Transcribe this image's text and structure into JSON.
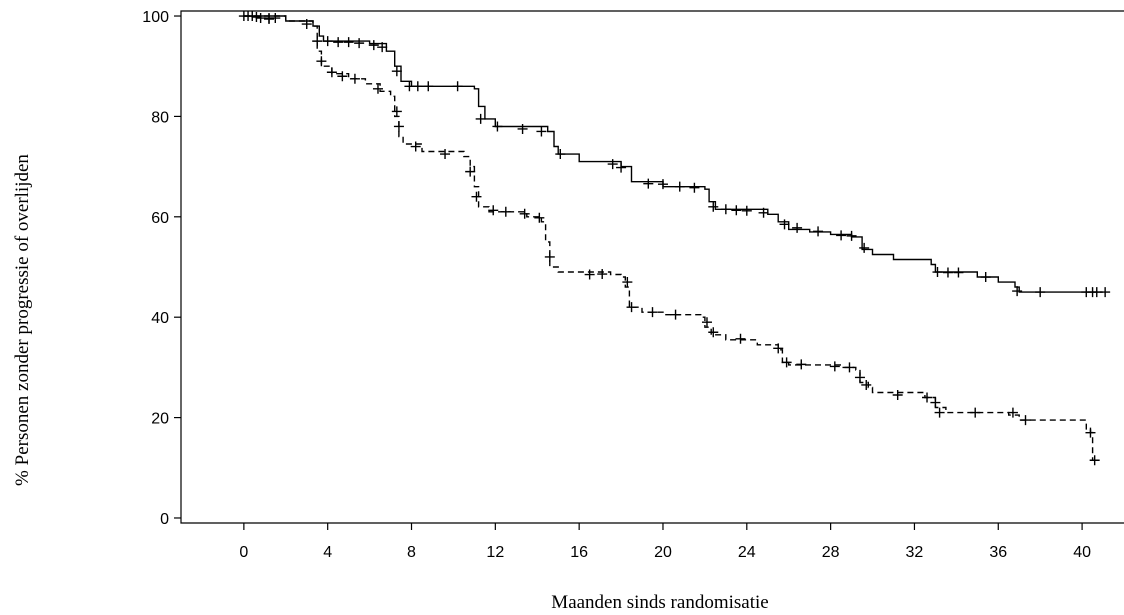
{
  "chart_data": {
    "type": "line",
    "title": "",
    "xlabel": "Maanden sinds randomisatie",
    "ylabel": "% Personen zonder progressie of overlijden",
    "xlim": [
      -3,
      42
    ],
    "ylim": [
      -1,
      101
    ],
    "xticks": [
      0,
      4,
      8,
      12,
      16,
      20,
      24,
      28,
      32,
      36,
      40
    ],
    "yticks": [
      0,
      20,
      40,
      60,
      80,
      100
    ],
    "grid": false,
    "legend": "none",
    "line_color": "#000000",
    "series": [
      {
        "style": "solid",
        "steps": [
          [
            0,
            100
          ],
          [
            2,
            99
          ],
          [
            3.3,
            98
          ],
          [
            3.6,
            96
          ],
          [
            3.8,
            95
          ],
          [
            6,
            94.5
          ],
          [
            6.8,
            93
          ],
          [
            7.2,
            90
          ],
          [
            7.5,
            87
          ],
          [
            8,
            86
          ],
          [
            11,
            85.5
          ],
          [
            11.2,
            82
          ],
          [
            11.5,
            79.5
          ],
          [
            12,
            78
          ],
          [
            14.5,
            77
          ],
          [
            14.8,
            74
          ],
          [
            15,
            72.5
          ],
          [
            16,
            71
          ],
          [
            18,
            70
          ],
          [
            18.5,
            67
          ],
          [
            20,
            66
          ],
          [
            22,
            65.5
          ],
          [
            22.2,
            63
          ],
          [
            22.5,
            61.5
          ],
          [
            25,
            60.5
          ],
          [
            25.5,
            59
          ],
          [
            26,
            57.5
          ],
          [
            27,
            57
          ],
          [
            28,
            56.5
          ],
          [
            29,
            56
          ],
          [
            29.5,
            53.5
          ],
          [
            30,
            52.5
          ],
          [
            31,
            51.5
          ],
          [
            32.8,
            50.5
          ],
          [
            33,
            49
          ],
          [
            35,
            48
          ],
          [
            36,
            47
          ],
          [
            36.8,
            46
          ],
          [
            37,
            45
          ],
          [
            41,
            45
          ]
        ],
        "censors": [
          [
            0,
            100
          ],
          [
            0.4,
            100
          ],
          [
            0.8,
            99.6
          ],
          [
            1.2,
            99.4
          ],
          [
            1.5,
            99.6
          ],
          [
            3,
            98.4
          ],
          [
            4,
            95
          ],
          [
            4.5,
            94.8
          ],
          [
            5,
            94.8
          ],
          [
            5.5,
            94.6
          ],
          [
            6.2,
            94.2
          ],
          [
            6.6,
            93.8
          ],
          [
            7.3,
            89
          ],
          [
            7.9,
            86
          ],
          [
            8.3,
            86
          ],
          [
            8.8,
            86
          ],
          [
            10.2,
            86
          ],
          [
            11.3,
            79.5
          ],
          [
            12.1,
            78
          ],
          [
            13.3,
            77.5
          ],
          [
            14.2,
            77
          ],
          [
            15.1,
            72.5
          ],
          [
            17.6,
            70.5
          ],
          [
            18,
            69.8
          ],
          [
            19.3,
            66.6
          ],
          [
            20,
            66.5
          ],
          [
            20.8,
            66
          ],
          [
            21.5,
            65.8
          ],
          [
            22.4,
            62
          ],
          [
            23,
            61.5
          ],
          [
            23.5,
            61.3
          ],
          [
            24,
            61.2
          ],
          [
            24.8,
            60.8
          ],
          [
            25.8,
            58.5
          ],
          [
            26.4,
            57.8
          ],
          [
            27.4,
            57.1
          ],
          [
            28.5,
            56.3
          ],
          [
            29,
            56.2
          ],
          [
            29.6,
            53.8
          ],
          [
            33.1,
            49
          ],
          [
            33.6,
            48.9
          ],
          [
            34.1,
            48.9
          ],
          [
            35.4,
            48
          ],
          [
            36.9,
            45.2
          ],
          [
            38,
            45
          ],
          [
            40.2,
            45
          ],
          [
            40.5,
            45
          ],
          [
            40.7,
            45
          ],
          [
            41.1,
            45
          ]
        ]
      },
      {
        "style": "dashed",
        "steps": [
          [
            0,
            100
          ],
          [
            2,
            99
          ],
          [
            3.3,
            98
          ],
          [
            3.5,
            93
          ],
          [
            3.7,
            90
          ],
          [
            4.2,
            88.5
          ],
          [
            5,
            87.5
          ],
          [
            5.8,
            86.5
          ],
          [
            6.5,
            85
          ],
          [
            7,
            84
          ],
          [
            7.2,
            80
          ],
          [
            7.4,
            76
          ],
          [
            7.6,
            74.5
          ],
          [
            8.5,
            73
          ],
          [
            10.5,
            72
          ],
          [
            10.8,
            70
          ],
          [
            11,
            66
          ],
          [
            11.2,
            62
          ],
          [
            11.7,
            61
          ],
          [
            13.5,
            60
          ],
          [
            14.2,
            59
          ],
          [
            14.4,
            55
          ],
          [
            14.6,
            50
          ],
          [
            15,
            49
          ],
          [
            17.5,
            48.5
          ],
          [
            18,
            48
          ],
          [
            18.2,
            46
          ],
          [
            18.4,
            42
          ],
          [
            19,
            41
          ],
          [
            20,
            40.5
          ],
          [
            21.8,
            40
          ],
          [
            22,
            38
          ],
          [
            22.3,
            36.5
          ],
          [
            23,
            35.5
          ],
          [
            24.5,
            34.5
          ],
          [
            25.5,
            33.5
          ],
          [
            25.7,
            31
          ],
          [
            26,
            30.5
          ],
          [
            28.5,
            30
          ],
          [
            29.2,
            29.5
          ],
          [
            29.4,
            27
          ],
          [
            29.8,
            26
          ],
          [
            30,
            25
          ],
          [
            32.5,
            24
          ],
          [
            33,
            22
          ],
          [
            33.5,
            21
          ],
          [
            36.5,
            20.5
          ],
          [
            37,
            19.5
          ],
          [
            40,
            19.5
          ],
          [
            40.2,
            17.5
          ],
          [
            40.4,
            17
          ],
          [
            40.5,
            11.5
          ]
        ],
        "censors": [
          [
            0.2,
            100
          ],
          [
            0.6,
            99.8
          ],
          [
            1.2,
            99.6
          ],
          [
            3.5,
            95
          ],
          [
            3.7,
            91
          ],
          [
            4.2,
            88.8
          ],
          [
            4.7,
            88
          ],
          [
            5.3,
            87.5
          ],
          [
            6.4,
            85.5
          ],
          [
            7.3,
            81
          ],
          [
            7.4,
            78
          ],
          [
            8.2,
            74
          ],
          [
            9.6,
            72.5
          ],
          [
            10.8,
            69
          ],
          [
            11.1,
            64
          ],
          [
            11.9,
            61.3
          ],
          [
            12.5,
            61
          ],
          [
            13.4,
            60.6
          ],
          [
            14.1,
            59.8
          ],
          [
            14.6,
            52
          ],
          [
            16.5,
            48.5
          ],
          [
            17.1,
            48.6
          ],
          [
            18.3,
            47
          ],
          [
            18.5,
            42
          ],
          [
            19.5,
            41
          ],
          [
            20.6,
            40.5
          ],
          [
            22.1,
            39
          ],
          [
            22.4,
            37
          ],
          [
            23.7,
            35.7
          ],
          [
            25.5,
            33.8
          ],
          [
            25.9,
            31
          ],
          [
            26.6,
            30.6
          ],
          [
            28.2,
            30.2
          ],
          [
            28.9,
            30
          ],
          [
            29.4,
            28
          ],
          [
            29.7,
            26.5
          ],
          [
            31.2,
            24.5
          ],
          [
            32.6,
            24
          ],
          [
            33,
            23
          ],
          [
            33.2,
            21
          ],
          [
            34.9,
            21
          ],
          [
            36.7,
            21
          ],
          [
            37.3,
            19.5
          ],
          [
            40.4,
            17
          ],
          [
            40.6,
            11.5
          ]
        ]
      }
    ]
  }
}
